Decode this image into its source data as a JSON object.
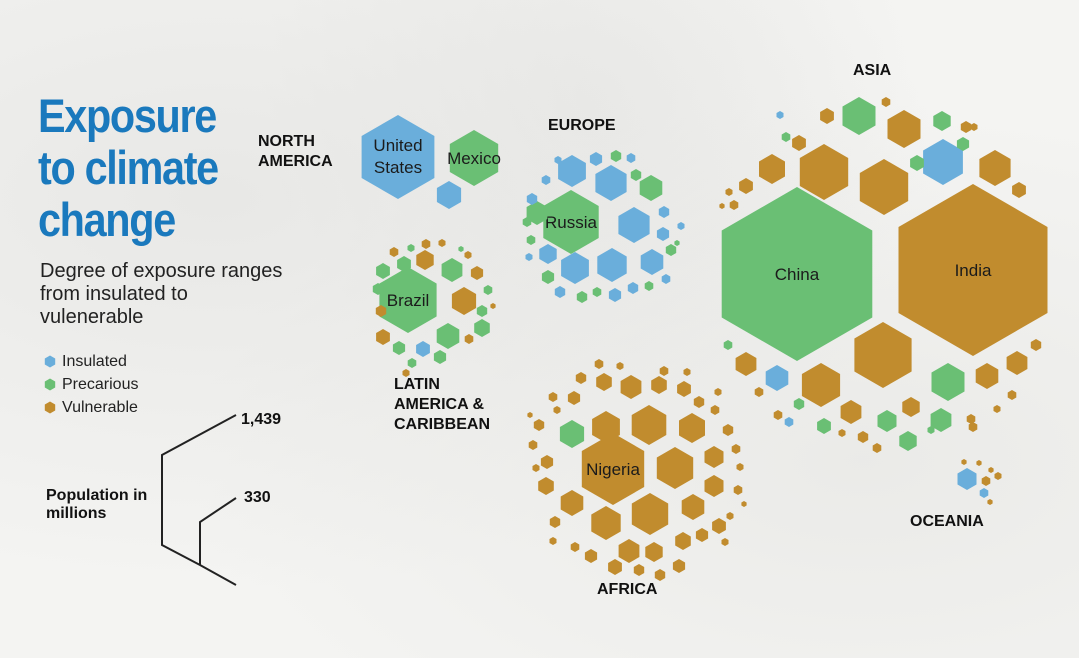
{
  "title": "Exposure to climate change",
  "subtitle": "Degree of exposure ranges from insulated to vulenerable",
  "legend": [
    {
      "label": "Insulated",
      "color": "#6aaedb"
    },
    {
      "label": "Precarious",
      "color": "#6abf74"
    },
    {
      "label": "Vulnerable",
      "color": "#c18c2e"
    }
  ],
  "population_scale": {
    "label": "Population in millions",
    "large": "1,439",
    "small": "330"
  },
  "regions": {
    "north_america": "NORTH AMERICA",
    "europe": "EUROPE",
    "asia": "ASIA",
    "latin_america": "LATIN AMERICA & CARIBBEAN",
    "africa": "AFRICA",
    "oceania": "OCEANIA"
  },
  "chart_data": {
    "type": "hexagon-bubble",
    "title": "Exposure to climate change",
    "categories": [
      "Insulated",
      "Precarious",
      "Vulnerable"
    ],
    "size_unit": "Population in millions",
    "size_reference": [
      1439,
      330
    ],
    "labeled_countries": [
      {
        "name": "United States",
        "region": "NORTH AMERICA",
        "category": "Insulated",
        "population": 330
      },
      {
        "name": "Mexico",
        "region": "NORTH AMERICA",
        "category": "Precarious",
        "population": 127
      },
      {
        "name": "Russia",
        "region": "EUROPE",
        "category": "Precarious",
        "population": 146
      },
      {
        "name": "Brazil",
        "region": "LATIN AMERICA & CARIBBEAN",
        "category": "Precarious",
        "population": 212
      },
      {
        "name": "China",
        "region": "ASIA",
        "category": "Precarious",
        "population": 1439
      },
      {
        "name": "India",
        "region": "ASIA",
        "category": "Vulnerable",
        "population": 1380
      },
      {
        "name": "Nigeria",
        "region": "AFRICA",
        "category": "Vulnerable",
        "population": 206
      }
    ]
  }
}
